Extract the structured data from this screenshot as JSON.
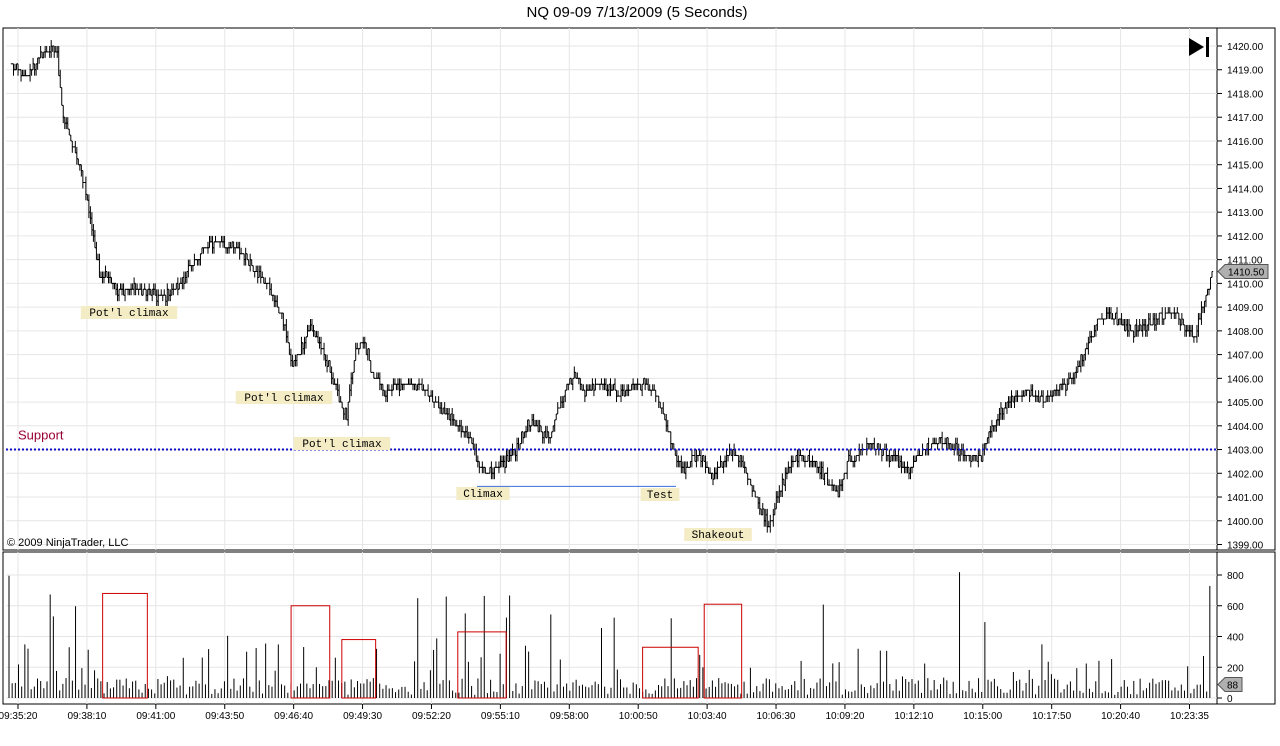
{
  "window": {
    "title": "NQ 09-09  7/13/2009 (5 Seconds)",
    "copyright": "© 2009 NinjaTrader, LLC"
  },
  "chart_data": [
    {
      "type": "bar",
      "subtype": "ohlc-price",
      "instrument": "NQ 09-09",
      "date": "7/13/2009",
      "interval": "5 Seconds",
      "ylim": [
        1399.0,
        1420.0
      ],
      "y_ticks": [
        "1399.00",
        "1400.00",
        "1401.00",
        "1402.00",
        "1403.00",
        "1404.00",
        "1405.00",
        "1406.00",
        "1407.00",
        "1408.00",
        "1409.00",
        "1410.00",
        "1411.00",
        "1412.00",
        "1413.00",
        "1414.00",
        "1415.00",
        "1416.00",
        "1417.00",
        "1418.00",
        "1419.00",
        "1420.00"
      ],
      "last_price": "1410.50",
      "price_path": [
        [
          0,
          1419.2
        ],
        [
          8,
          1418.6
        ],
        [
          16,
          1419.3
        ],
        [
          24,
          1419.9
        ],
        [
          30,
          1419.6
        ],
        [
          34,
          1417.0
        ],
        [
          40,
          1415.8
        ],
        [
          48,
          1414.2
        ],
        [
          54,
          1412.0
        ],
        [
          58,
          1410.3
        ],
        [
          64,
          1410.4
        ],
        [
          70,
          1409.6
        ],
        [
          80,
          1409.8
        ],
        [
          90,
          1409.6
        ],
        [
          100,
          1409.4
        ],
        [
          110,
          1409.9
        ],
        [
          118,
          1410.6
        ],
        [
          126,
          1411.4
        ],
        [
          136,
          1411.8
        ],
        [
          146,
          1411.5
        ],
        [
          156,
          1411.0
        ],
        [
          164,
          1410.4
        ],
        [
          172,
          1409.6
        ],
        [
          180,
          1408.4
        ],
        [
          186,
          1406.5
        ],
        [
          192,
          1407.3
        ],
        [
          198,
          1408.2
        ],
        [
          204,
          1407.4
        ],
        [
          210,
          1406.5
        ],
        [
          216,
          1405.3
        ],
        [
          222,
          1404.4
        ],
        [
          228,
          1407.1
        ],
        [
          234,
          1407.5
        ],
        [
          240,
          1406.0
        ],
        [
          248,
          1405.4
        ],
        [
          256,
          1405.6
        ],
        [
          264,
          1405.8
        ],
        [
          272,
          1405.7
        ],
        [
          280,
          1405.0
        ],
        [
          288,
          1404.5
        ],
        [
          296,
          1404.0
        ],
        [
          304,
          1403.4
        ],
        [
          310,
          1402.3
        ],
        [
          318,
          1402.0
        ],
        [
          326,
          1402.4
        ],
        [
          334,
          1403.0
        ],
        [
          342,
          1404.0
        ],
        [
          350,
          1403.9
        ],
        [
          356,
          1403.5
        ],
        [
          362,
          1404.6
        ],
        [
          368,
          1405.8
        ],
        [
          374,
          1406.1
        ],
        [
          380,
          1405.4
        ],
        [
          388,
          1405.8
        ],
        [
          396,
          1405.7
        ],
        [
          404,
          1405.3
        ],
        [
          410,
          1405.6
        ],
        [
          418,
          1405.8
        ],
        [
          426,
          1405.5
        ],
        [
          434,
          1404.0
        ],
        [
          440,
          1402.7
        ],
        [
          446,
          1402.1
        ],
        [
          452,
          1402.8
        ],
        [
          458,
          1402.6
        ],
        [
          464,
          1401.8
        ],
        [
          470,
          1402.3
        ],
        [
          476,
          1403.0
        ],
        [
          484,
          1402.5
        ],
        [
          490,
          1401.6
        ],
        [
          496,
          1400.6
        ],
        [
          502,
          1399.9
        ],
        [
          508,
          1401.0
        ],
        [
          514,
          1402.1
        ],
        [
          522,
          1402.8
        ],
        [
          530,
          1402.5
        ],
        [
          536,
          1402.2
        ],
        [
          542,
          1401.6
        ],
        [
          548,
          1401.1
        ],
        [
          554,
          1402.4
        ],
        [
          562,
          1402.9
        ],
        [
          570,
          1403.2
        ],
        [
          578,
          1402.9
        ],
        [
          586,
          1402.6
        ],
        [
          594,
          1402.0
        ],
        [
          602,
          1402.8
        ],
        [
          610,
          1403.2
        ],
        [
          618,
          1403.3
        ],
        [
          626,
          1403.0
        ],
        [
          634,
          1402.8
        ],
        [
          642,
          1402.6
        ],
        [
          648,
          1403.6
        ],
        [
          656,
          1404.6
        ],
        [
          664,
          1405.1
        ],
        [
          672,
          1405.5
        ],
        [
          680,
          1405.2
        ],
        [
          688,
          1405.1
        ],
        [
          696,
          1405.6
        ],
        [
          704,
          1406.1
        ],
        [
          712,
          1407.2
        ],
        [
          720,
          1408.4
        ],
        [
          728,
          1408.7
        ],
        [
          736,
          1408.3
        ],
        [
          744,
          1408.0
        ],
        [
          752,
          1408.2
        ],
        [
          760,
          1408.5
        ],
        [
          768,
          1408.8
        ],
        [
          776,
          1408.4
        ],
        [
          784,
          1407.8
        ],
        [
          790,
          1409.0
        ],
        [
          796,
          1410.5
        ]
      ],
      "support": {
        "label": "Support",
        "value": 1403.0
      },
      "climax_line": {
        "value": 1401.45,
        "from": 1402,
        "to": 1426
      },
      "annotations": [
        {
          "text": "Pot'l climax",
          "bar": 1050,
          "price": 1408.55
        },
        {
          "text": "Pot'l climax",
          "bar": 1300,
          "price": 1405.0
        },
        {
          "text": "Pot'l climax",
          "bar": 1380,
          "price": 1403.1
        },
        {
          "text": "Climax",
          "bar": 1479,
          "price": 1401.1
        },
        {
          "text": "Test",
          "bar": 1595,
          "price": 1401.1
        },
        {
          "text": "Shakeout",
          "bar": 1635,
          "price": 1399.4
        }
      ],
      "x_ticks": [
        "09:35:20",
        "09:38:10",
        "09:41:00",
        "09:43:50",
        "09:46:40",
        "09:49:30",
        "09:52:20",
        "09:55:10",
        "09:58:00",
        "10:00:50",
        "10:03:40",
        "10:06:30",
        "10:09:20",
        "10:12:10",
        "10:15:00",
        "10:17:50",
        "10:20:40",
        "10:23:35"
      ]
    },
    {
      "type": "bar",
      "subtype": "volume",
      "ylim": [
        0,
        850
      ],
      "y_ticks": [
        "0",
        "200",
        "400",
        "600",
        "800"
      ],
      "last_volume": "88",
      "highlight_boxes": [
        {
          "from": 0.08,
          "to": 0.117,
          "top": 680
        },
        {
          "from": 0.236,
          "to": 0.268,
          "top": 600
        },
        {
          "from": 0.278,
          "to": 0.306,
          "top": 380
        },
        {
          "from": 0.374,
          "to": 0.414,
          "top": 430
        },
        {
          "from": 0.527,
          "to": 0.573,
          "top": 330
        },
        {
          "from": 0.578,
          "to": 0.609,
          "top": 610
        }
      ]
    }
  ]
}
